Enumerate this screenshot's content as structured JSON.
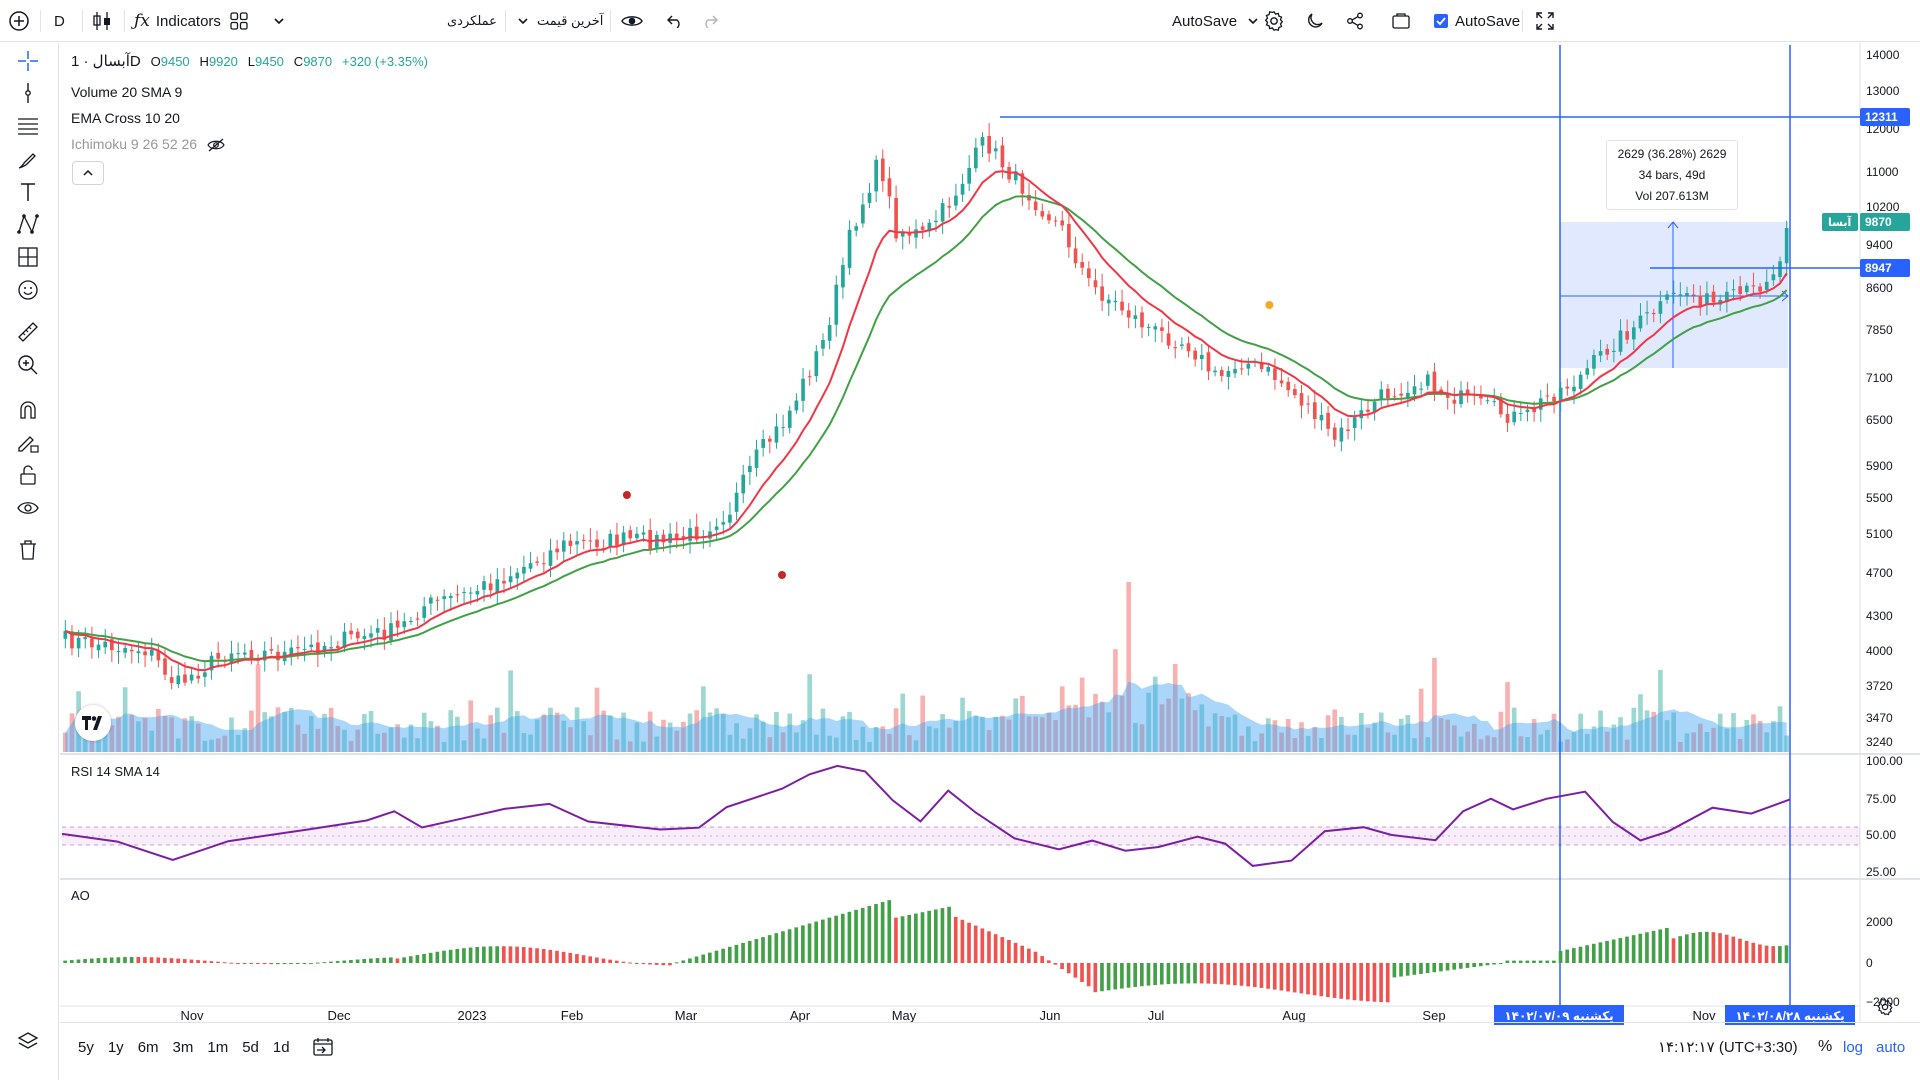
{
  "toolbar": {
    "symbol_short": "D",
    "indicators_label": "Indicators",
    "performance_label": "عملکردی",
    "last_price_label": "آخرین قیمت",
    "autosave_dropdown_label": "AutoSave",
    "autosave_checkbox_label": "AutoSave"
  },
  "legend": {
    "symbol": "آبسال · 1D",
    "open_label": "O",
    "open": "9450",
    "high_label": "H",
    "high": "9920",
    "low_label": "L",
    "low": "9450",
    "close_label": "C",
    "close": "9870",
    "change": "+320 (+3.35%)",
    "volume": "Volume 20 SMA 9",
    "ema": "EMA Cross 10 20",
    "ichimoku": "Ichimoku 9 26 52 26"
  },
  "measure": {
    "line1": "2629 (36.28%) 2629",
    "line2": "34 bars, 49d",
    "line3": "Vol 207.613M"
  },
  "price_axis": {
    "ticks": [
      "14000",
      "13000",
      "12000",
      "11000",
      "10200",
      "9400",
      "8600",
      "7850",
      "7100",
      "6500",
      "5900",
      "5500",
      "5100",
      "4700",
      "4300",
      "4000",
      "3720",
      "3470",
      "3240"
    ],
    "badge_top": "12311",
    "badge_last_name": "آبسا",
    "badge_last": "9870",
    "badge_line": "8947"
  },
  "rsi": {
    "label": "RSI 14 SMA 14",
    "ticks": [
      "100.00",
      "75.00",
      "50.00",
      "25.00"
    ]
  },
  "ao": {
    "label": "AO",
    "ticks": [
      "2000",
      "0",
      "−2000"
    ]
  },
  "time_axis": {
    "labels": [
      "Nov",
      "Dec",
      "2023",
      "Feb",
      "Mar",
      "Apr",
      "May",
      "Jun",
      "Jul",
      "Aug",
      "Sep",
      "Nov"
    ],
    "badge_left": "یکشنبه ۱۴۰۲/۰۷/۰۹",
    "badge_right": "یکشنبه ۱۴۰۲/۰۸/۲۸"
  },
  "bottom": {
    "ranges": [
      "5y",
      "1y",
      "6m",
      "3m",
      "1m",
      "5d",
      "1d"
    ],
    "clock": "۱۴:۱۲:۱۷ (UTC+3:30)",
    "percent": "%",
    "log": "log",
    "auto": "auto"
  },
  "colors": {
    "accent": "#2962ff",
    "up": "#26a69a",
    "down": "#ef5350",
    "ema_fast": "#f23645",
    "ema_slow": "#43a047",
    "rsi": "#7b1fa2",
    "volume_sma": "#42a5f5"
  }
}
